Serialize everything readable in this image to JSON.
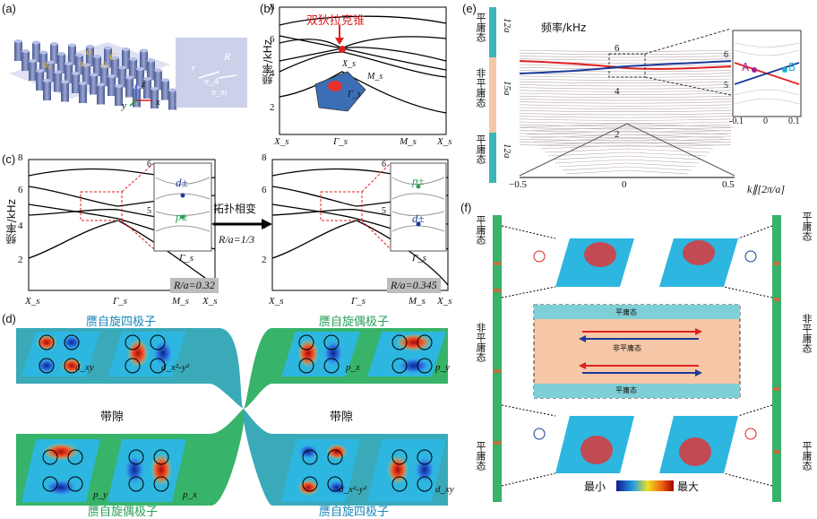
{
  "panels": {
    "a": {
      "label": "(a)",
      "symbols": {
        "a": "a",
        "a0": "a₀",
        "C": "C",
        "a_left": "a₁",
        "a_right": "a₂",
        "R": "R",
        "r": "r",
        "n_a": "n_A",
        "n_m": "n_m"
      },
      "axes": {
        "z": "z",
        "y": "y",
        "x": "x"
      }
    },
    "b": {
      "label": "(b)",
      "title": "双狄拉克锥",
      "ylabel": "频率/kHz",
      "yticks": [
        "8",
        "6",
        "4",
        "2"
      ],
      "xticks": [
        "X_s",
        "Γ_s",
        "M_s",
        "X_s"
      ],
      "bz_labels": {
        "x": "X_s",
        "m": "M_s",
        "g": "Γ_s"
      }
    },
    "c": {
      "label": "(c)",
      "ylabel": "频率/kHz",
      "yticks": [
        "8",
        "6",
        "4",
        "2"
      ],
      "xticks": [
        "X_s",
        "Γ_s",
        "M_s",
        "X_s"
      ],
      "left_badge": "R/a=0.32",
      "right_badge": "R/a=0.345",
      "arrow_top": "拓扑相变",
      "arrow_bottom": "R/a=1/3",
      "inset_left": {
        "yticks": [
          "6",
          "5"
        ],
        "top": "d±",
        "bottom": "p±",
        "gamma": "Γ_s"
      },
      "inset_right": {
        "yticks": [
          "6",
          "5"
        ],
        "top": "p±",
        "bottom": "d±",
        "gamma": "Γ_s"
      }
    },
    "d": {
      "label": "(d)",
      "top_left_title": "赝自旋四极子",
      "top_right_title": "赝自旋偶极子",
      "bottom_left_title": "赝自旋偶极子",
      "bottom_right_title": "赝自旋四极子",
      "gap_left": "带隙",
      "gap_right": "带隙",
      "field_labels": {
        "dxy": "d_xy",
        "dx2y2": "d_x²-y²",
        "px": "p_x",
        "py": "p_y"
      }
    },
    "e": {
      "label": "(e)",
      "ylabel": "频率/kHz",
      "yticks": [
        "6",
        "4",
        "2"
      ],
      "xticks": [
        "−0.5",
        "0",
        "0.5"
      ],
      "xlabel": "k∥[2π/a]",
      "strip": [
        {
          "text": "平庸态",
          "count": "12a"
        },
        {
          "text": "非平庸态",
          "count": "15a"
        },
        {
          "text": "平庸态",
          "count": "12a"
        }
      ],
      "inset": {
        "A": "A",
        "B": "B",
        "yticks": [
          "6",
          "5"
        ],
        "xticks": [
          "-0.1",
          "0",
          "0.1"
        ]
      }
    },
    "f": {
      "label": "(f)",
      "left_labels": [
        "平庸态",
        "非平庸态",
        "平庸态"
      ],
      "right_labels": [
        "平庸态",
        "非平庸态",
        "平庸态"
      ],
      "center": {
        "top": "平庸态",
        "middle": "非平庸态",
        "bottom": "平庸态"
      },
      "colorbar": {
        "min": "最小",
        "max": "最大"
      }
    }
  },
  "colors": {
    "blue_text": "#1a86b8",
    "green_text": "#2aa05a",
    "red": "#e02020",
    "teal": "#3aa9b8",
    "peach": "#f6c7a6"
  }
}
